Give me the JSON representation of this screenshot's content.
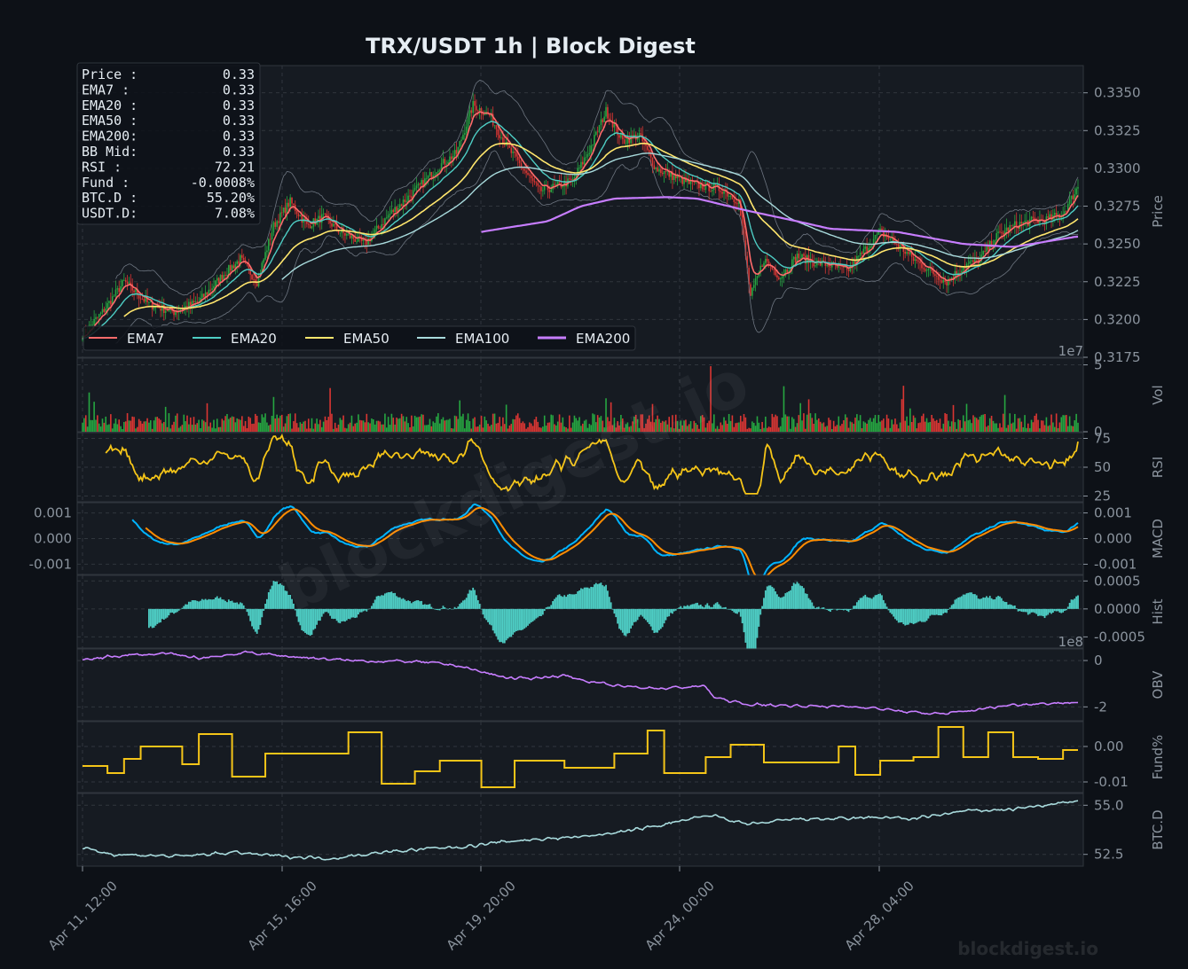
{
  "title": "TRX/USDT  1h  |  Block Digest",
  "watermark": "blockdigest.io",
  "footer_brand": "blockdigest.io",
  "colors": {
    "background": "#0d1117",
    "panel": "#161b22",
    "grid": "#30363d",
    "text": "#e6edf3",
    "muted": "#8b949e",
    "up": "#26a641",
    "down": "#da3633",
    "ema7": "#ff6b6b",
    "ema20": "#4ecdc4",
    "ema50": "#ffe66d",
    "ema100": "#a8dadc",
    "ema200": "#c77dff",
    "rsi": "#f5c518",
    "macd": "#00b4ff",
    "signal": "#ff8c00",
    "hist": "#4ecdc4",
    "obv": "#c77dff",
    "fund": "#f5c518",
    "btcd": "#a8dadc"
  },
  "info_box": [
    {
      "label": "Price :",
      "value": "0.33"
    },
    {
      "label": "EMA7  :",
      "value": "0.33"
    },
    {
      "label": "EMA20 :",
      "value": "0.33"
    },
    {
      "label": "EMA50 :",
      "value": "0.33"
    },
    {
      "label": "EMA200:",
      "value": "0.33"
    },
    {
      "label": "BB Mid:",
      "value": "0.33"
    },
    {
      "label": "RSI   :",
      "value": "72.21"
    },
    {
      "label": "Fund  :",
      "value": "-0.0008%"
    },
    {
      "label": "BTC.D :",
      "value": "55.20%"
    },
    {
      "label": "USDT.D:",
      "value": "7.08%"
    }
  ],
  "chart_data": {
    "type": "candlestick",
    "x_ticks": [
      "Apr 11, 12:00",
      "Apr 15, 16:00",
      "Apr 19, 20:00",
      "Apr 24, 00:00",
      "Apr 28, 04:00"
    ],
    "legend": [
      "EMA7",
      "EMA20",
      "EMA50",
      "EMA100",
      "EMA200"
    ],
    "legend_placement": "bottom-left",
    "grid": true,
    "price": {
      "ylabel": "Price",
      "ylim": [
        0.3175,
        0.3368
      ],
      "yticks": [
        "0.3175",
        "0.3200",
        "0.3225",
        "0.3250",
        "0.3275",
        "0.3300",
        "0.3325",
        "0.3350"
      ],
      "close_path": [
        [
          0,
          0.319
        ],
        [
          12,
          0.3205
        ],
        [
          25,
          0.3225
        ],
        [
          40,
          0.321
        ],
        [
          55,
          0.3205
        ],
        [
          70,
          0.3212
        ],
        [
          85,
          0.323
        ],
        [
          95,
          0.324
        ],
        [
          105,
          0.3225
        ],
        [
          115,
          0.3262
        ],
        [
          125,
          0.3278
        ],
        [
          135,
          0.3262
        ],
        [
          145,
          0.3268
        ],
        [
          155,
          0.3258
        ],
        [
          170,
          0.325
        ],
        [
          185,
          0.327
        ],
        [
          200,
          0.3285
        ],
        [
          215,
          0.3302
        ],
        [
          225,
          0.331
        ],
        [
          235,
          0.3342
        ],
        [
          245,
          0.3335
        ],
        [
          255,
          0.3315
        ],
        [
          265,
          0.33
        ],
        [
          275,
          0.3285
        ],
        [
          285,
          0.3288
        ],
        [
          295,
          0.3292
        ],
        [
          305,
          0.3312
        ],
        [
          315,
          0.3338
        ],
        [
          325,
          0.3318
        ],
        [
          335,
          0.3322
        ],
        [
          345,
          0.33
        ],
        [
          355,
          0.3295
        ],
        [
          365,
          0.329
        ],
        [
          375,
          0.3288
        ],
        [
          385,
          0.3286
        ],
        [
          395,
          0.3278
        ],
        [
          402,
          0.3215
        ],
        [
          410,
          0.324
        ],
        [
          420,
          0.3228
        ],
        [
          430,
          0.3242
        ],
        [
          440,
          0.3238
        ],
        [
          450,
          0.3236
        ],
        [
          460,
          0.3232
        ],
        [
          470,
          0.3245
        ],
        [
          480,
          0.3258
        ],
        [
          490,
          0.325
        ],
        [
          500,
          0.324
        ],
        [
          510,
          0.3232
        ],
        [
          520,
          0.3225
        ],
        [
          530,
          0.3235
        ],
        [
          540,
          0.324
        ],
        [
          550,
          0.3255
        ],
        [
          560,
          0.3262
        ],
        [
          570,
          0.3265
        ],
        [
          580,
          0.3266
        ],
        [
          590,
          0.327
        ],
        [
          599,
          0.3288
        ]
      ],
      "ema200_path": [
        [
          224,
          0.3252
        ],
        [
          240,
          0.3258
        ],
        [
          280,
          0.3265
        ],
        [
          300,
          0.3275
        ],
        [
          320,
          0.328
        ],
        [
          352,
          0.3281
        ],
        [
          370,
          0.328
        ],
        [
          400,
          0.3272
        ],
        [
          430,
          0.3265
        ],
        [
          450,
          0.326
        ],
        [
          490,
          0.3258
        ],
        [
          530,
          0.325
        ],
        [
          560,
          0.3248
        ],
        [
          599,
          0.3255
        ]
      ]
    },
    "volume": {
      "ylabel": "Vol",
      "exponent": "1e7",
      "yticks": [
        "0",
        "5"
      ],
      "ylim": [
        0,
        5.5
      ]
    },
    "rsi": {
      "ylabel": "RSI",
      "yticks": [
        "25",
        "50",
        "75"
      ],
      "ylim": [
        20,
        80
      ],
      "last": 72.21
    },
    "macd": {
      "ylabel": "MACD",
      "yticks": [
        "-0.001",
        "0.000",
        "0.001"
      ],
      "left_yticks": [
        "-0.001",
        "0.000",
        "0.001"
      ],
      "ylim": [
        -0.0014,
        0.0014
      ]
    },
    "hist": {
      "ylabel": "Hist",
      "yticks": [
        "-0.0005",
        "0.0000",
        "0.0005"
      ],
      "ylim": [
        -0.0007,
        0.0006
      ]
    },
    "obv": {
      "ylabel": "OBV",
      "exponent": "1e8",
      "yticks": [
        "-2",
        "0"
      ],
      "ylim": [
        -2.6,
        0.5
      ],
      "path": [
        [
          0,
          0.0
        ],
        [
          20,
          0.2
        ],
        [
          50,
          0.3
        ],
        [
          70,
          0.1
        ],
        [
          100,
          0.35
        ],
        [
          120,
          0.2
        ],
        [
          160,
          0.0
        ],
        [
          200,
          -0.05
        ],
        [
          225,
          -0.2
        ],
        [
          240,
          -0.5
        ],
        [
          260,
          -0.8
        ],
        [
          290,
          -0.65
        ],
        [
          305,
          -0.9
        ],
        [
          320,
          -1.1
        ],
        [
          350,
          -1.2
        ],
        [
          375,
          -1.1
        ],
        [
          380,
          -1.6
        ],
        [
          400,
          -1.9
        ],
        [
          430,
          -1.95
        ],
        [
          470,
          -2.0
        ],
        [
          500,
          -2.25
        ],
        [
          520,
          -2.3
        ],
        [
          540,
          -2.1
        ],
        [
          560,
          -1.9
        ],
        [
          599,
          -1.8
        ]
      ]
    },
    "fund": {
      "ylabel": "Fund%",
      "yticks": [
        "-0.01",
        "0.00"
      ],
      "ylim": [
        -0.013,
        0.007
      ],
      "path": [
        [
          0,
          -0.0055
        ],
        [
          15,
          -0.0075
        ],
        [
          25,
          -0.0035
        ],
        [
          35,
          0.0
        ],
        [
          60,
          -0.005
        ],
        [
          70,
          0.0035
        ],
        [
          90,
          -0.0085
        ],
        [
          110,
          -0.002
        ],
        [
          130,
          -0.002
        ],
        [
          160,
          0.004
        ],
        [
          180,
          -0.0105
        ],
        [
          200,
          -0.007
        ],
        [
          215,
          -0.004
        ],
        [
          240,
          -0.0115
        ],
        [
          260,
          -0.004
        ],
        [
          290,
          -0.006
        ],
        [
          320,
          -0.002
        ],
        [
          340,
          0.0045
        ],
        [
          350,
          -0.0075
        ],
        [
          375,
          -0.003
        ],
        [
          390,
          0.0005
        ],
        [
          410,
          -0.0045
        ],
        [
          455,
          0.0
        ],
        [
          465,
          -0.008
        ],
        [
          480,
          -0.004
        ],
        [
          500,
          -0.003
        ],
        [
          515,
          0.0055
        ],
        [
          530,
          -0.003
        ],
        [
          545,
          0.004
        ],
        [
          560,
          -0.003
        ],
        [
          575,
          -0.0035
        ],
        [
          590,
          -0.001
        ],
        [
          599,
          -0.001
        ]
      ]
    },
    "btcd": {
      "ylabel": "BTC.D",
      "yticks": [
        "52.5",
        "55.0"
      ],
      "ylim": [
        51.9,
        55.6
      ],
      "path": [
        [
          0,
          52.8
        ],
        [
          20,
          52.5
        ],
        [
          60,
          52.4
        ],
        [
          90,
          52.6
        ],
        [
          120,
          52.4
        ],
        [
          150,
          52.3
        ],
        [
          180,
          52.6
        ],
        [
          210,
          52.8
        ],
        [
          230,
          52.9
        ],
        [
          260,
          53.2
        ],
        [
          300,
          53.4
        ],
        [
          330,
          53.7
        ],
        [
          360,
          54.2
        ],
        [
          380,
          54.5
        ],
        [
          400,
          54.0
        ],
        [
          430,
          54.3
        ],
        [
          460,
          54.3
        ],
        [
          480,
          54.4
        ],
        [
          500,
          54.3
        ],
        [
          530,
          54.7
        ],
        [
          560,
          54.8
        ],
        [
          599,
          55.2
        ]
      ]
    }
  }
}
